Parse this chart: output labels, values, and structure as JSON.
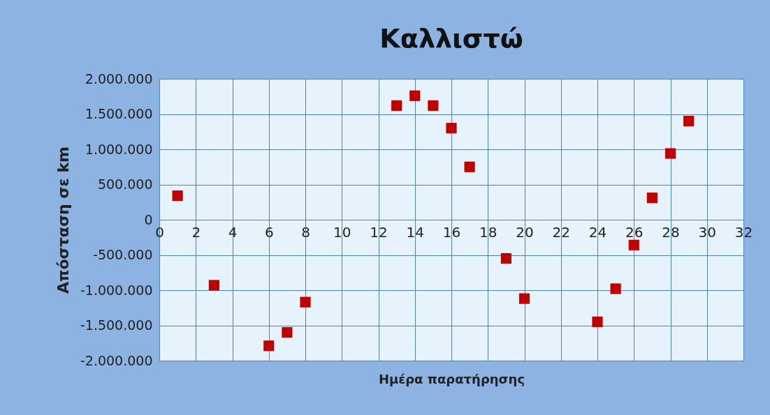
{
  "chart_data": {
    "type": "scatter",
    "title": "Καλλιστώ",
    "xlabel": "Ημέρα παρατήρησης",
    "ylabel": "Απόσταση σε km",
    "x": [
      1,
      3,
      6,
      7,
      8,
      13,
      14,
      15,
      16,
      17,
      19,
      20,
      24,
      25,
      26,
      27,
      28,
      29
    ],
    "series": [
      {
        "color": "#c00000",
        "values": [
          340000,
          -930000,
          -1790000,
          -1600000,
          -1170000,
          1620000,
          1760000,
          1620000,
          1300000,
          750000,
          -550000,
          -1120000,
          -1450000,
          -980000,
          -360000,
          310000,
          940000,
          1400000
        ]
      }
    ],
    "xlim": [
      0,
      32
    ],
    "xticks": [
      0,
      2,
      4,
      6,
      8,
      10,
      12,
      14,
      16,
      18,
      20,
      22,
      24,
      26,
      28,
      30,
      32
    ],
    "ylim": [
      -2000000,
      2000000
    ],
    "yticks": [
      {
        "value": -2000000,
        "label": "-2.000.000"
      },
      {
        "value": -1500000,
        "label": "-1.500.000"
      },
      {
        "value": -1000000,
        "label": "-1.000.000"
      },
      {
        "value": -500000,
        "label": "-500.000"
      },
      0,
      {
        "value": 500000,
        "label": "500.000"
      },
      {
        "value": 1000000,
        "label": "1.000.000"
      },
      {
        "value": 1500000,
        "label": "1.500.000"
      },
      {
        "value": 2000000,
        "label": "2.000.000"
      }
    ],
    "grid": true,
    "marker": "square"
  }
}
